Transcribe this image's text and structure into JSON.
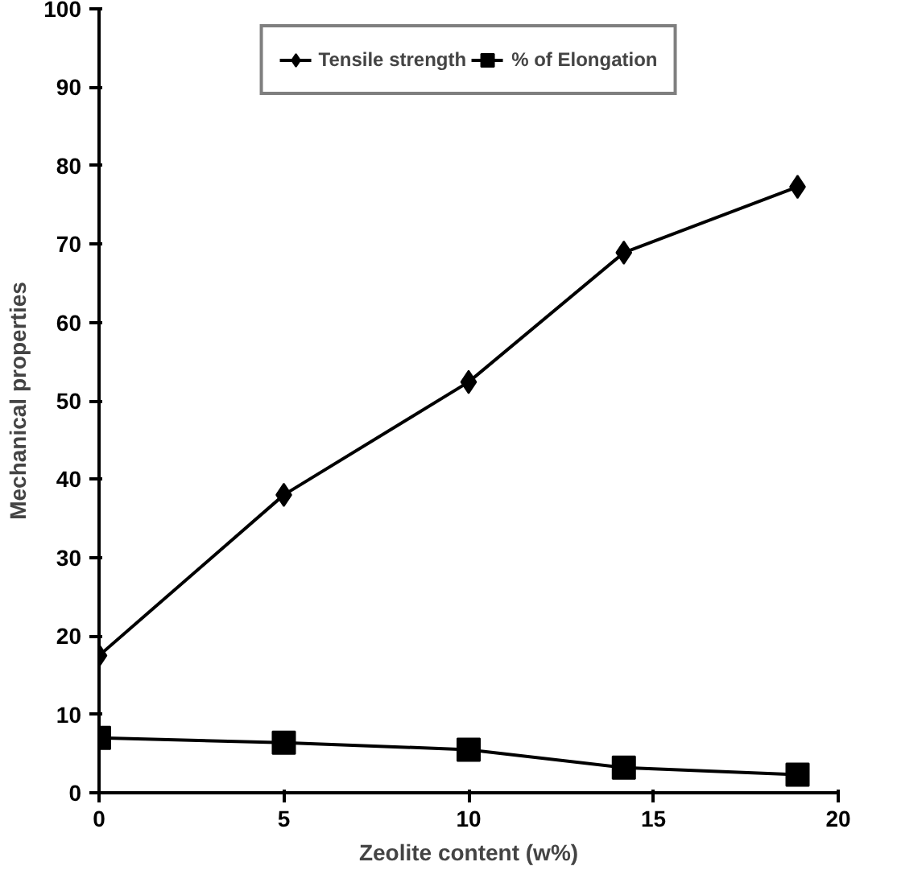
{
  "chart_data": {
    "type": "line",
    "xlabel": "Zeolite content (w%)",
    "ylabel": "Mechanical properties",
    "xlim": [
      0,
      20
    ],
    "xticks": [
      0,
      5,
      10,
      15,
      20
    ],
    "ylim": [
      0,
      100
    ],
    "yticks": [
      0,
      10,
      20,
      30,
      40,
      50,
      60,
      70,
      80,
      90,
      100
    ],
    "x": [
      0,
      5,
      10,
      14.2,
      18.9
    ],
    "series": [
      {
        "name": "Tensile strength",
        "color": "#000000",
        "marker": "diamond",
        "values": [
          17.5,
          38,
          52.4,
          68.9,
          77.3
        ]
      },
      {
        "name": "% of Elongation",
        "color": "#000000",
        "marker": "square",
        "values": [
          7.0,
          6.4,
          5.5,
          3.2,
          2.3
        ]
      }
    ],
    "legend": "top",
    "grid": false,
    "line_style": "solid"
  }
}
